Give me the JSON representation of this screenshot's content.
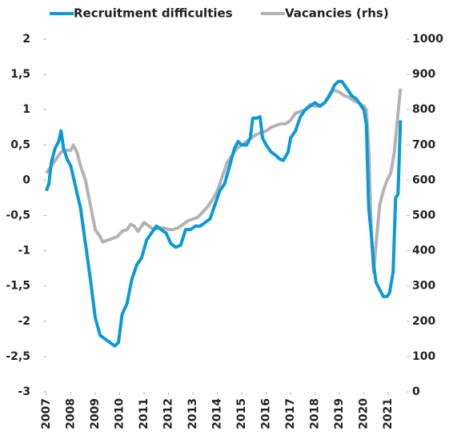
{
  "chart_data": {
    "type": "line",
    "xlim": [
      2007,
      2021.75
    ],
    "xticks": [
      2007,
      2008,
      2009,
      2010,
      2011,
      2012,
      2013,
      2014,
      2015,
      2016,
      2017,
      2018,
      2019,
      2020,
      2021
    ],
    "ylim": [
      -3,
      2
    ],
    "yticks": [
      -3,
      {
        "value": -2.5,
        "label": "-2,5"
      },
      -2,
      {
        "value": -1.5,
        "label": "-1,5"
      },
      -1,
      {
        "value": -0.5,
        "label": "-0,5"
      },
      0,
      {
        "value": 0.5,
        "label": "0,5"
      },
      1,
      {
        "value": 1.5,
        "label": "1,5"
      },
      2
    ],
    "y2lim": [
      0,
      1000
    ],
    "y2ticks": [
      0,
      100,
      200,
      300,
      400,
      500,
      600,
      700,
      800,
      900,
      1000
    ],
    "grid": false,
    "series": [
      {
        "name": "Recruitment difficulties",
        "color": "#0a9ad6",
        "x": [
          2007.0,
          2007.1,
          2007.2,
          2007.35,
          2007.5,
          2007.6,
          2007.7,
          2007.85,
          2008.0,
          2008.2,
          2008.4,
          2008.6,
          2008.8,
          2009.0,
          2009.2,
          2009.4,
          2009.6,
          2009.8,
          2009.95,
          2010.1,
          2010.3,
          2010.5,
          2010.7,
          2010.9,
          2011.1,
          2011.3,
          2011.5,
          2011.7,
          2011.9,
          2012.1,
          2012.3,
          2012.5,
          2012.7,
          2012.9,
          2013.1,
          2013.3,
          2013.5,
          2013.7,
          2013.9,
          2014.1,
          2014.3,
          2014.5,
          2014.7,
          2014.85,
          2015.0,
          2015.2,
          2015.35,
          2015.45,
          2015.6,
          2015.75,
          2015.85,
          2016.0,
          2016.2,
          2016.4,
          2016.55,
          2016.7,
          2016.9,
          2017.0,
          2017.2,
          2017.4,
          2017.6,
          2017.8,
          2018.0,
          2018.2,
          2018.4,
          2018.6,
          2018.8,
          2018.95,
          2019.1,
          2019.3,
          2019.5,
          2019.7,
          2019.9,
          2020.0,
          2020.1,
          2020.2,
          2020.3,
          2020.4,
          2020.5,
          2020.65,
          2020.8,
          2020.95,
          2021.05,
          2021.2,
          2021.3,
          2021.4,
          2021.5
        ],
        "values": [
          -0.15,
          -0.05,
          0.25,
          0.45,
          0.55,
          0.7,
          0.45,
          0.3,
          0.2,
          -0.1,
          -0.4,
          -0.9,
          -1.4,
          -1.95,
          -2.2,
          -2.25,
          -2.3,
          -2.35,
          -2.3,
          -1.9,
          -1.75,
          -1.4,
          -1.2,
          -1.1,
          -0.85,
          -0.75,
          -0.65,
          -0.7,
          -0.75,
          -0.9,
          -0.95,
          -0.92,
          -0.7,
          -0.7,
          -0.65,
          -0.65,
          -0.6,
          -0.55,
          -0.35,
          -0.15,
          -0.05,
          0.2,
          0.45,
          0.55,
          0.5,
          0.5,
          0.6,
          0.88,
          0.88,
          0.9,
          0.6,
          0.5,
          0.4,
          0.35,
          0.3,
          0.28,
          0.4,
          0.6,
          0.7,
          0.9,
          1.0,
          1.05,
          1.1,
          1.05,
          1.1,
          1.2,
          1.35,
          1.4,
          1.4,
          1.3,
          1.2,
          1.15,
          1.05,
          1.0,
          0.8,
          -0.4,
          -0.75,
          -1.2,
          -1.45,
          -1.55,
          -1.65,
          -1.65,
          -1.6,
          -1.3,
          -0.25,
          -0.2,
          0.85
        ]
      },
      {
        "name": "Vacancies (rhs)",
        "color": "#b3b3b3",
        "axis": "y2",
        "x": [
          2007.0,
          2007.2,
          2007.4,
          2007.6,
          2007.8,
          2008.0,
          2008.1,
          2008.25,
          2008.4,
          2008.6,
          2008.8,
          2009.0,
          2009.2,
          2009.3,
          2009.5,
          2009.7,
          2009.9,
          2010.1,
          2010.3,
          2010.45,
          2010.6,
          2010.75,
          2010.9,
          2011.0,
          2011.2,
          2011.4,
          2011.6,
          2011.8,
          2012.0,
          2012.2,
          2012.4,
          2012.6,
          2012.8,
          2013.0,
          2013.2,
          2013.4,
          2013.6,
          2013.8,
          2014.0,
          2014.2,
          2014.4,
          2014.6,
          2014.8,
          2015.0,
          2015.2,
          2015.4,
          2015.6,
          2015.8,
          2016.0,
          2016.2,
          2016.4,
          2016.6,
          2016.8,
          2017.0,
          2017.2,
          2017.4,
          2017.6,
          2017.8,
          2018.0,
          2018.2,
          2018.4,
          2018.6,
          2018.8,
          2019.0,
          2019.2,
          2019.4,
          2019.6,
          2019.8,
          2020.0,
          2020.1,
          2020.2,
          2020.3,
          2020.4,
          2020.5,
          2020.65,
          2020.8,
          2020.95,
          2021.1,
          2021.25,
          2021.4,
          2021.5
        ],
        "values": [
          620,
          640,
          660,
          680,
          685,
          685,
          700,
          680,
          640,
          600,
          530,
          460,
          440,
          425,
          430,
          435,
          440,
          455,
          460,
          475,
          470,
          455,
          470,
          480,
          470,
          460,
          465,
          465,
          460,
          460,
          465,
          475,
          485,
          490,
          495,
          510,
          525,
          545,
          570,
          610,
          650,
          670,
          690,
          700,
          710,
          720,
          730,
          735,
          740,
          750,
          755,
          760,
          760,
          770,
          790,
          795,
          800,
          815,
          810,
          810,
          820,
          845,
          855,
          850,
          840,
          835,
          825,
          820,
          810,
          800,
          690,
          460,
          340,
          420,
          530,
          570,
          600,
          620,
          680,
          790,
          860
        ]
      }
    ]
  }
}
